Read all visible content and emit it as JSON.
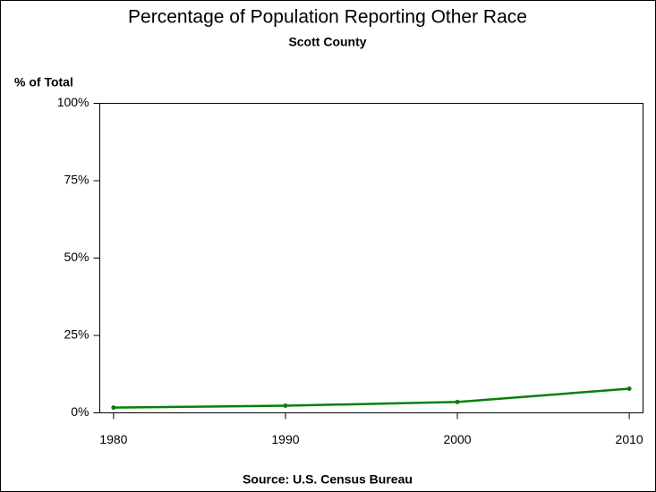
{
  "chart_data": {
    "type": "line",
    "title": "Percentage of Population Reporting Other Race",
    "subtitle": "Scott County",
    "y_label": "% of Total",
    "footnote": "Source: U.S. Census Bureau",
    "x": [
      1980,
      1990,
      2000,
      2010
    ],
    "series": [
      {
        "name": "Other Race",
        "color": "#087f08",
        "values": [
          1.7,
          2.3,
          3.5,
          7.8
        ]
      }
    ],
    "xlim": [
      1979.2,
      2010.8
    ],
    "xticks": [
      1980,
      1990,
      2000,
      2010
    ],
    "ylim": [
      0,
      100
    ],
    "yticks": [
      {
        "value": 0,
        "label": "0%"
      },
      {
        "value": 25,
        "label": "25%"
      },
      {
        "value": 50,
        "label": "50%"
      },
      {
        "value": 75,
        "label": "75%"
      },
      {
        "value": 100,
        "label": "100%"
      }
    ],
    "legend": false,
    "grid": false
  }
}
